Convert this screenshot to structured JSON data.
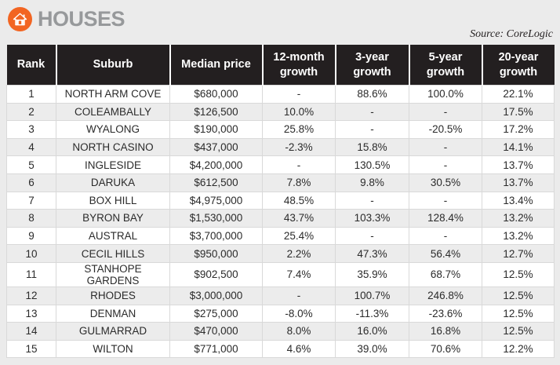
{
  "header": {
    "title": "HOUSES",
    "source": "Source: CoreLogic"
  },
  "icons": {
    "house": "house-icon"
  },
  "colors": {
    "accent_orange": "#f26522",
    "header_bg": "#231f20",
    "header_text": "#ffffff",
    "title_gray": "#97999b",
    "row_alt": "#ececec",
    "row_border": "#d9d9d9",
    "page_bg": "#ebebeb",
    "body_text": "#2b2b2b"
  },
  "chart_data": {
    "type": "table",
    "title": "HOUSES",
    "source": "Source: CoreLogic",
    "columns": [
      "Rank",
      "Suburb",
      "Median price",
      "12-month\ngrowth",
      "3-year\ngrowth",
      "5-year\ngrowth",
      "20-year\ngrowth"
    ],
    "rows": [
      [
        "1",
        "NORTH ARM COVE",
        "$680,000",
        "-",
        "88.6%",
        "100.0%",
        "22.1%"
      ],
      [
        "2",
        "COLEAMBALLY",
        "$126,500",
        "10.0%",
        "-",
        "-",
        "17.5%"
      ],
      [
        "3",
        "WYALONG",
        "$190,000",
        "25.8%",
        "-",
        "-20.5%",
        "17.2%"
      ],
      [
        "4",
        "NORTH CASINO",
        "$437,000",
        "-2.3%",
        "15.8%",
        "-",
        "14.1%"
      ],
      [
        "5",
        "INGLESIDE",
        "$4,200,000",
        "-",
        "130.5%",
        "-",
        "13.7%"
      ],
      [
        "6",
        "DARUKA",
        "$612,500",
        "7.8%",
        "9.8%",
        "30.5%",
        "13.7%"
      ],
      [
        "7",
        "BOX HILL",
        "$4,975,000",
        "48.5%",
        "-",
        "-",
        "13.4%"
      ],
      [
        "8",
        "BYRON BAY",
        "$1,530,000",
        "43.7%",
        "103.3%",
        "128.4%",
        "13.2%"
      ],
      [
        "9",
        "AUSTRAL",
        "$3,700,000",
        "25.4%",
        "-",
        "-",
        "13.2%"
      ],
      [
        "10",
        "CECIL HILLS",
        "$950,000",
        "2.2%",
        "47.3%",
        "56.4%",
        "12.7%"
      ],
      [
        "11",
        "STANHOPE GARDENS",
        "$902,500",
        "7.4%",
        "35.9%",
        "68.7%",
        "12.5%"
      ],
      [
        "12",
        "RHODES",
        "$3,000,000",
        "-",
        "100.7%",
        "246.8%",
        "12.5%"
      ],
      [
        "13",
        "DENMAN",
        "$275,000",
        "-8.0%",
        "-11.3%",
        "-23.6%",
        "12.5%"
      ],
      [
        "14",
        "GULMARRAD",
        "$470,000",
        "8.0%",
        "16.0%",
        "16.8%",
        "12.5%"
      ],
      [
        "15",
        "WILTON",
        "$771,000",
        "4.6%",
        "39.0%",
        "70.6%",
        "12.2%"
      ]
    ]
  }
}
